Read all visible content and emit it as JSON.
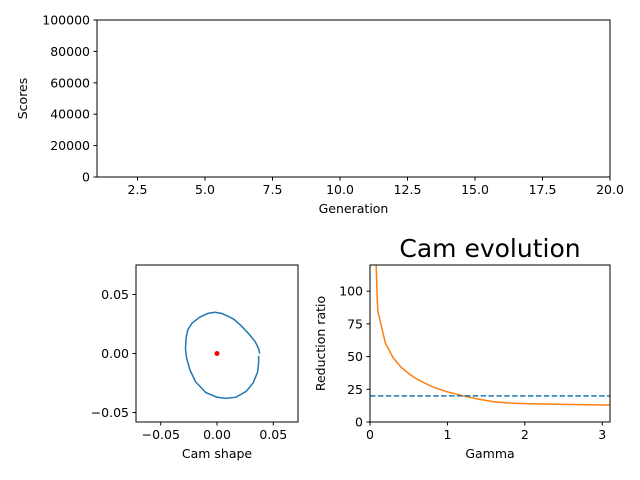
{
  "chart_data": [
    {
      "id": "scores",
      "type": "line",
      "title": "",
      "xlabel": "Generation",
      "ylabel": "Scores",
      "xlim": [
        1,
        20
      ],
      "ylim": [
        0,
        100000
      ],
      "xticks": [
        2.5,
        5.0,
        7.5,
        10.0,
        12.5,
        15.0,
        17.5,
        20.0
      ],
      "xtick_labels": [
        "2.5",
        "5.0",
        "7.5",
        "10.0",
        "12.5",
        "15.0",
        "17.5",
        "20.0"
      ],
      "yticks": [
        0,
        20000,
        40000,
        60000,
        80000,
        100000
      ],
      "ytick_labels": [
        "0",
        "20000",
        "40000",
        "60000",
        "80000",
        "100000"
      ],
      "series": []
    },
    {
      "id": "cam-shape",
      "type": "line",
      "title": "",
      "xlabel": "Cam shape",
      "ylabel": "",
      "xlim": [
        -0.072,
        0.072
      ],
      "ylim": [
        -0.058,
        0.075
      ],
      "xticks": [
        -0.05,
        0.0,
        0.05
      ],
      "xtick_labels": [
        "−0.05",
        "0.00",
        "0.05"
      ],
      "yticks": [
        -0.05,
        0.0,
        0.05
      ],
      "ytick_labels": [
        "−0.05",
        "0.00",
        "0.05"
      ],
      "series": [
        {
          "name": "cam profile",
          "color": "#1f77b4",
          "x": [
            0.037,
            0.037,
            0.036,
            0.032,
            0.026,
            0.017,
            0.008,
            0.0,
            -0.01,
            -0.019,
            -0.024,
            -0.027,
            -0.028,
            -0.0275,
            -0.026,
            -0.022,
            -0.015,
            -0.008,
            -0.002,
            0.004,
            0.009,
            0.015,
            0.021,
            0.028,
            0.034,
            0.037,
            0.038
          ],
          "y": [
            -0.002,
            -0.008,
            -0.016,
            -0.025,
            -0.032,
            -0.037,
            -0.038,
            -0.037,
            -0.033,
            -0.024,
            -0.014,
            -0.004,
            0.004,
            0.013,
            0.02,
            0.026,
            0.031,
            0.034,
            0.035,
            0.034,
            0.032,
            0.029,
            0.024,
            0.017,
            0.01,
            0.004,
            0.0
          ]
        }
      ],
      "points": [
        {
          "name": "center",
          "color": "#ff0000",
          "x": 0.0,
          "y": 0.0
        }
      ]
    },
    {
      "id": "reduction-ratio",
      "type": "line",
      "title": "Cam evolution",
      "xlabel": "Gamma",
      "ylabel": "Reduction ratio",
      "xlim": [
        0,
        3.1
      ],
      "ylim": [
        0,
        120
      ],
      "xticks": [
        0,
        1,
        2,
        3
      ],
      "xtick_labels": [
        "0",
        "1",
        "2",
        "3"
      ],
      "yticks": [
        0,
        25,
        50,
        75,
        100
      ],
      "ytick_labels": [
        "0",
        "25",
        "50",
        "75",
        "100"
      ],
      "series": [
        {
          "name": "reduction ratio",
          "color": "#ff7f0e",
          "style": "solid",
          "x": [
            0.08,
            0.09,
            0.1,
            0.2,
            0.3,
            0.4,
            0.5,
            0.6,
            0.7,
            0.8,
            0.9,
            1.0,
            1.2,
            1.4,
            1.6,
            1.8,
            2.0,
            2.5,
            3.0,
            3.1
          ],
          "y": [
            120,
            100,
            85,
            60,
            49,
            42,
            37,
            33,
            30,
            27,
            25,
            23,
            20,
            17.5,
            15.5,
            14.5,
            14,
            13.5,
            13,
            13
          ]
        },
        {
          "name": "reference",
          "color": "#1f77b4",
          "style": "dashed",
          "x": [
            0,
            3.1
          ],
          "y": [
            20,
            20
          ]
        }
      ]
    }
  ]
}
